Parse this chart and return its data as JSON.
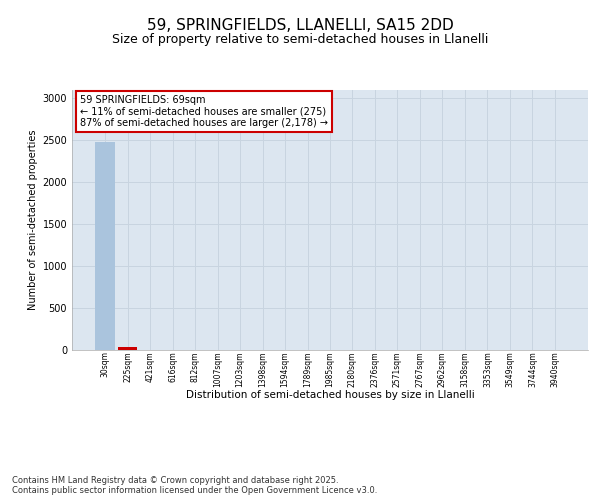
{
  "title1": "59, SPRINGFIELDS, LLANELLI, SA15 2DD",
  "title2": "Size of property relative to semi-detached houses in Llanelli",
  "xlabel": "Distribution of semi-detached houses by size in Llanelli",
  "ylabel": "Number of semi-detached properties",
  "categories": [
    "30sqm",
    "225sqm",
    "421sqm",
    "616sqm",
    "812sqm",
    "1007sqm",
    "1203sqm",
    "1398sqm",
    "1594sqm",
    "1789sqm",
    "1985sqm",
    "2180sqm",
    "2376sqm",
    "2571sqm",
    "2767sqm",
    "2962sqm",
    "3158sqm",
    "3353sqm",
    "3549sqm",
    "3744sqm",
    "3940sqm"
  ],
  "values": [
    2480,
    30,
    2,
    1,
    0,
    0,
    0,
    0,
    0,
    0,
    0,
    0,
    0,
    0,
    0,
    0,
    0,
    0,
    0,
    0,
    0
  ],
  "bar_color_normal": "#aac4dd",
  "bar_color_highlight": "#cc0000",
  "highlight_index": 1,
  "annotation_text": "59 SPRINGFIELDS: 69sqm\n← 11% of semi-detached houses are smaller (275)\n87% of semi-detached houses are larger (2,178) →",
  "annotation_box_color": "#cc0000",
  "ylim": [
    0,
    3100
  ],
  "yticks": [
    0,
    500,
    1000,
    1500,
    2000,
    2500,
    3000
  ],
  "grid_color": "#c8d4e0",
  "background_color": "#dce6f0",
  "footer1": "Contains HM Land Registry data © Crown copyright and database right 2025.",
  "footer2": "Contains public sector information licensed under the Open Government Licence v3.0.",
  "title1_fontsize": 11,
  "title2_fontsize": 9,
  "annot_fontsize": 7,
  "footer_fontsize": 6,
  "ylabel_fontsize": 7,
  "xlabel_fontsize": 7.5,
  "ytick_fontsize": 7,
  "xtick_fontsize": 5.5
}
